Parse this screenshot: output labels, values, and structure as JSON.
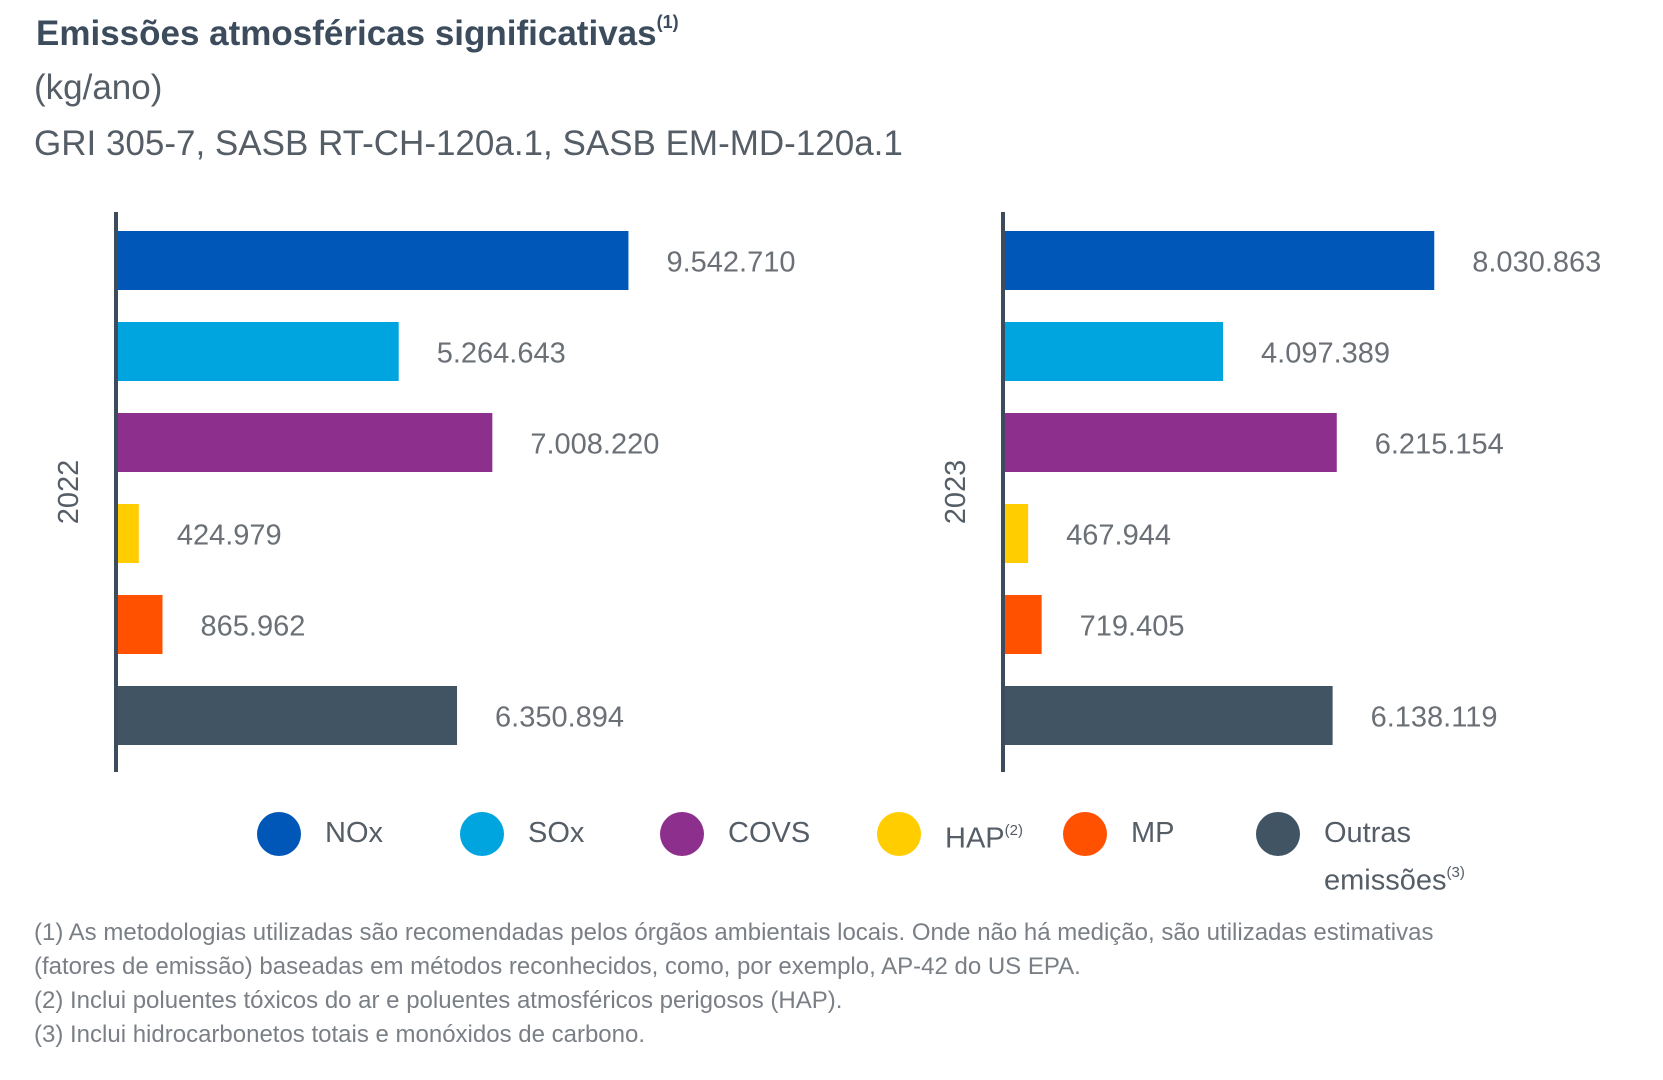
{
  "header": {
    "title": "Emissões atmosféricas significativas",
    "title_note": "(1)",
    "unit": "(kg/ano)",
    "reference": "GRI 305-7, SASB RT-CH-120a.1, SASB EM-MD-120a.1"
  },
  "chart_data": [
    {
      "type": "bar",
      "orientation": "horizontal",
      "panel_label": "2022",
      "categories": [
        "NOx",
        "SOx",
        "COVS",
        "HAP",
        "MP",
        "Outras emissões"
      ],
      "values": [
        9542710,
        5264643,
        7008220,
        424979,
        865962,
        6350894
      ],
      "value_labels": [
        "9.542.710",
        "5.264.643",
        "7.008.220",
        "424.979",
        "865.962",
        "6.350.894"
      ],
      "xlim": [
        0,
        10000000
      ],
      "grid": false
    },
    {
      "type": "bar",
      "orientation": "horizontal",
      "panel_label": "2023",
      "categories": [
        "NOx",
        "SOx",
        "COVS",
        "HAP",
        "MP",
        "Outras emissões"
      ],
      "values": [
        8030863,
        4097389,
        6215154,
        467944,
        719405,
        6138119
      ],
      "value_labels": [
        "8.030.863",
        "4.097.389",
        "6.215.154",
        "467.944",
        "719.405",
        "6.138.119"
      ],
      "xlim": [
        0,
        10000000
      ],
      "grid": false
    }
  ],
  "colors": {
    "NOx": "#0057b7",
    "SOx": "#00a5df",
    "COVS": "#8d2f8c",
    "HAP": "#ffcd00",
    "MP": "#ff5100",
    "Outras emissões": "#405464",
    "axis": "#3c4c5c",
    "value_text": "#6b7076",
    "panel_label_text": "#555d66"
  },
  "legend": {
    "placement": "bottom",
    "items": [
      {
        "label": "NOx",
        "note": ""
      },
      {
        "label": "SOx",
        "note": ""
      },
      {
        "label": "COVS",
        "note": ""
      },
      {
        "label": "HAP",
        "note": "(2)"
      },
      {
        "label": "MP",
        "note": ""
      },
      {
        "label": "Outras",
        "label2": "emissões",
        "note": "(3)"
      }
    ]
  },
  "footnotes": [
    "(1) As metodologias utilizadas são recomendadas pelos órgãos ambientais locais. Onde não há medição, são utilizadas estimativas",
    "(fatores de emissão) baseadas em métodos reconhecidos, como, por exemplo, AP-42 do US EPA.",
    "(2) Inclui poluentes tóxicos do ar e poluentes atmosféricos perigosos (HAP).",
    "(3) Inclui hidrocarbonetos totais e monóxidos de carbono."
  ]
}
